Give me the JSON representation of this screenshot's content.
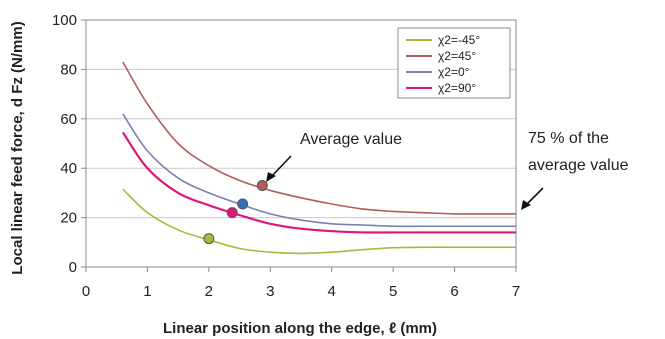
{
  "chart_data": {
    "type": "line",
    "xlabel": "Linear position along the edge, ℓ (mm)",
    "ylabel": "Local linear feed force, d Fz (N/mm)",
    "xlim": [
      0,
      7
    ],
    "ylim": [
      0,
      100
    ],
    "xticks": [
      "0",
      "1",
      "2",
      "3",
      "4",
      "5",
      "6",
      "7"
    ],
    "yticks": [
      "0",
      "20",
      "40",
      "60",
      "80",
      "100"
    ],
    "grid": "horizontal",
    "legend": "top-right",
    "series": [
      {
        "name": "χ2=-45°",
        "color": "#a8b83a",
        "x": [
          0.6,
          1,
          1.5,
          2,
          2.5,
          3,
          3.5,
          4,
          4.5,
          5,
          5.5,
          6,
          6.5,
          7
        ],
        "y": [
          31.5,
          22,
          15,
          11,
          7.5,
          6,
          5.5,
          6,
          7,
          7.8,
          8,
          8,
          8,
          8
        ]
      },
      {
        "name": "χ2=45°",
        "color": "#b35a5a",
        "x": [
          0.6,
          1,
          1.5,
          2,
          2.5,
          3,
          3.5,
          4,
          4.5,
          5,
          5.5,
          6,
          6.5,
          7
        ],
        "y": [
          83,
          66,
          50,
          41,
          35,
          31,
          28,
          25.5,
          23.5,
          22.5,
          22,
          21.5,
          21.5,
          21.5
        ]
      },
      {
        "name": "χ2=0°",
        "color": "#7a7fb3",
        "x": [
          0.6,
          1,
          1.5,
          2,
          2.5,
          3,
          3.5,
          4,
          4.5,
          5,
          5.5,
          6,
          6.5,
          7
        ],
        "y": [
          62,
          47,
          36,
          30,
          25.5,
          21.5,
          19,
          17.5,
          17,
          16.5,
          16.5,
          16.5,
          16.5,
          16.5
        ]
      },
      {
        "name": "χ2=90°",
        "color": "#e0147a",
        "x": [
          0.6,
          1,
          1.5,
          2,
          2.5,
          3,
          3.5,
          4,
          4.5,
          5,
          5.5,
          6,
          6.5,
          7
        ],
        "y": [
          54.5,
          40,
          30,
          25,
          21,
          17.5,
          15.5,
          14.5,
          14,
          14,
          14,
          14,
          14,
          14
        ]
      }
    ],
    "markers": [
      {
        "series": "χ2=-45°",
        "x": 2.0,
        "y": 11.5,
        "color": "#a8b83a"
      },
      {
        "series": "χ2=45°",
        "x": 2.87,
        "y": 33,
        "color": "#b35a5a"
      },
      {
        "series": "χ2=0°",
        "x": 2.55,
        "y": 25.5,
        "color": "#2f6fc0"
      },
      {
        "series": "χ2=90°",
        "x": 2.38,
        "y": 22,
        "color": "#e0147a"
      }
    ],
    "annotations": [
      {
        "text": "Average value"
      },
      {
        "text": "75 % of the average value"
      }
    ]
  },
  "ui": {
    "annotation_avg": "Average value",
    "annotation_75_line1": "75 % of the",
    "annotation_75_line2": "average value"
  }
}
